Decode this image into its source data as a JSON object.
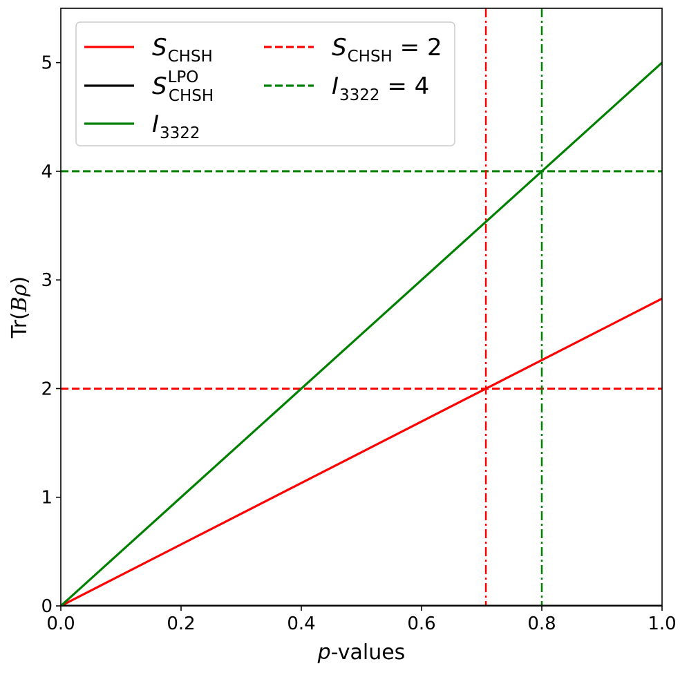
{
  "chart_data": {
    "type": "line",
    "xlabel": "p-values",
    "ylabel": "Tr(Bρ)",
    "xlim": [
      0,
      1
    ],
    "ylim": [
      0,
      5.5
    ],
    "xticks": [
      "0.0",
      "0.2",
      "0.4",
      "0.6",
      "0.8",
      "1.0"
    ],
    "yticks": [
      "0",
      "1",
      "2",
      "3",
      "4",
      "5"
    ],
    "grid": false,
    "legend_position": "upper-left",
    "series": [
      {
        "name": "S_CHSH",
        "label_main": "S",
        "label_sub": "CHSH",
        "label_sup": "",
        "color": "#ff0000",
        "style": "solid",
        "x": [
          0,
          1
        ],
        "y": [
          0,
          2.828
        ]
      },
      {
        "name": "S_CHSH^LPO",
        "label_main": "S",
        "label_sub": "CHSH",
        "label_sup": "LPO",
        "color": "#000000",
        "style": "solid",
        "x": [
          0,
          1
        ],
        "y": [
          0,
          0
        ]
      },
      {
        "name": "I_3322",
        "label_main": "I",
        "label_sub": "3322",
        "label_sup": "",
        "color": "#008000",
        "style": "solid",
        "x": [
          0,
          1
        ],
        "y": [
          0,
          5
        ]
      }
    ],
    "hlines": [
      {
        "name": "S_CHSH = 2",
        "label_main": "S",
        "label_sub": "CHSH",
        "label_rest": " = 2",
        "y": 2,
        "color": "#ff0000",
        "style": "dashed"
      },
      {
        "name": "I_3322 = 4",
        "label_main": "I",
        "label_sub": "3322",
        "label_rest": " = 4",
        "y": 4,
        "color": "#008000",
        "style": "dashed"
      }
    ],
    "vlines": [
      {
        "x": 0.707,
        "color": "#ff0000",
        "style": "dashdot"
      },
      {
        "x": 0.8,
        "color": "#008000",
        "style": "dashdot"
      }
    ]
  }
}
